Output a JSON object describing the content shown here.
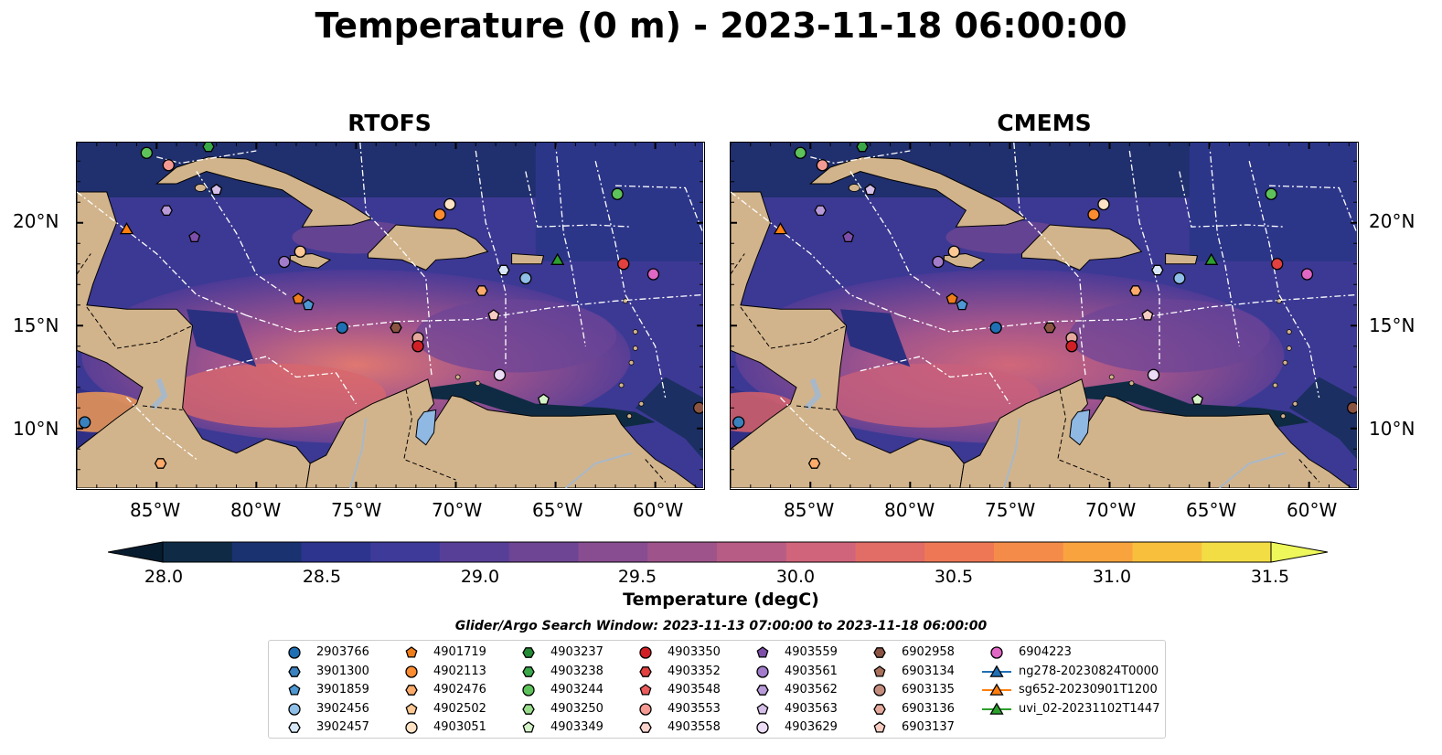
{
  "title": "Temperature (0 m) - 2023-11-18 06:00:00",
  "panels": [
    {
      "id": "left",
      "title": "RTOFS"
    },
    {
      "id": "right",
      "title": "CMEMS"
    }
  ],
  "axes": {
    "lat_labels": [
      "20°N",
      "15°N",
      "10°N"
    ],
    "lon_labels": [
      "85°W",
      "80°W",
      "75°W",
      "70°W",
      "65°W",
      "60°W"
    ]
  },
  "colorbar": {
    "label": "Temperature (degC)",
    "ticks": [
      "28.0",
      "28.5",
      "29.0",
      "29.5",
      "30.0",
      "30.5",
      "31.0",
      "31.5"
    ],
    "range": [
      28.0,
      31.5
    ],
    "colors": [
      "#0e2a45",
      "#1a3270",
      "#2c348e",
      "#3e3a99",
      "#573f98",
      "#6e4594",
      "#884d90",
      "#9e548a",
      "#b75c84",
      "#cf647a",
      "#e26c66",
      "#ee7855",
      "#f58b48",
      "#f9a33f",
      "#f8bf3c",
      "#f3dd45"
    ],
    "extend": "both"
  },
  "search_window": "Glider/Argo Search Window: 2023-11-13 07:00:00 to 2023-11-18 06:00:00",
  "legend": {
    "columns": [
      [
        {
          "label": "2903766",
          "marker": "circle",
          "color": "#1f6fb4"
        },
        {
          "label": "3901300",
          "marker": "hexagon",
          "color": "#3a82be"
        },
        {
          "label": "3901859",
          "marker": "pentagon",
          "color": "#4d98d3"
        },
        {
          "label": "3902456",
          "marker": "circle",
          "color": "#8fbfe6"
        },
        {
          "label": "3902457",
          "marker": "hexagon",
          "color": "#d7e7f7"
        }
      ],
      [
        {
          "label": "4901719",
          "marker": "pentagon",
          "color": "#ef7d1a"
        },
        {
          "label": "4902113",
          "marker": "circle",
          "color": "#fb8c2f"
        },
        {
          "label": "4902476",
          "marker": "hexagon",
          "color": "#fcab6b"
        },
        {
          "label": "4902502",
          "marker": "pentagon",
          "color": "#fdc894"
        },
        {
          "label": "4903051",
          "marker": "circle",
          "color": "#fde2c4"
        }
      ],
      [
        {
          "label": "4903237",
          "marker": "hexagon",
          "color": "#238b35"
        },
        {
          "label": "4903238",
          "marker": "hexagon",
          "color": "#3aa848"
        },
        {
          "label": "4903244",
          "marker": "circle",
          "color": "#5ec25a"
        },
        {
          "label": "4903250",
          "marker": "hexagon",
          "color": "#99dc8c"
        },
        {
          "label": "4903349",
          "marker": "pentagon",
          "color": "#d3f2c7"
        }
      ],
      [
        {
          "label": "4903350",
          "marker": "circle",
          "color": "#d11f26"
        },
        {
          "label": "4903352",
          "marker": "hexagon",
          "color": "#e34040"
        },
        {
          "label": "4903548",
          "marker": "pentagon",
          "color": "#ec5b5b"
        },
        {
          "label": "4903553",
          "marker": "circle",
          "color": "#f59a93"
        },
        {
          "label": "4903558",
          "marker": "hexagon",
          "color": "#fcd2cd"
        }
      ],
      [
        {
          "label": "4903559",
          "marker": "pentagon",
          "color": "#7d4fa8"
        },
        {
          "label": "4903561",
          "marker": "circle",
          "color": "#a27ccb"
        },
        {
          "label": "4903562",
          "marker": "hexagon",
          "color": "#b89ad8"
        },
        {
          "label": "4903563",
          "marker": "pentagon",
          "color": "#d5bfe9"
        },
        {
          "label": "4903629",
          "marker": "circle",
          "color": "#ecdcf6"
        }
      ],
      [
        {
          "label": "6902958",
          "marker": "hexagon",
          "color": "#8b5442"
        },
        {
          "label": "6903134",
          "marker": "pentagon",
          "color": "#a9705c"
        },
        {
          "label": "6903135",
          "marker": "circle",
          "color": "#c48c7d"
        },
        {
          "label": "6903136",
          "marker": "hexagon",
          "color": "#e4a99c"
        },
        {
          "label": "6903137",
          "marker": "pentagon",
          "color": "#f7ccc2"
        }
      ],
      [
        {
          "label": "6904223",
          "marker": "circle",
          "color": "#e067c4"
        },
        {
          "label": "ng278-20230824T0000",
          "marker": "triangle",
          "color": "#1f6fb4",
          "line": true
        },
        {
          "label": "sg652-20230901T1200",
          "marker": "triangle",
          "color": "#ff7f0e",
          "line": true
        },
        {
          "label": "uvi_02-20231102T1447",
          "marker": "triangle",
          "color": "#2ca02c",
          "line": true
        }
      ]
    ]
  },
  "map_colors": {
    "land": "#d2b48c",
    "lake": "#8fb8e2",
    "rivers": "#a8b8c8",
    "shelf": "#0f2b44",
    "warm_pool": "#d96a70",
    "warm_core": "#f2a04a"
  },
  "markers": [
    {
      "type": "circle",
      "color": "#5ec25a",
      "lon": -85.5,
      "lat": 23.4,
      "id": "4903244"
    },
    {
      "type": "circle",
      "color": "#f59a93",
      "lon": -84.4,
      "lat": 22.8,
      "id": "4903553"
    },
    {
      "type": "pentagon",
      "color": "#d5bfe9",
      "lon": -82.0,
      "lat": 21.6,
      "id": "4903563"
    },
    {
      "type": "hexagon",
      "color": "#b89ad8",
      "lon": -84.5,
      "lat": 20.6,
      "id": "4903562"
    },
    {
      "type": "pentagon",
      "color": "#7d4fa8",
      "lon": -83.1,
      "lat": 19.3,
      "id": "4903559"
    },
    {
      "type": "triangle",
      "color": "#ff7f0e",
      "lon": -86.5,
      "lat": 19.7,
      "id": "sg652-20230901T1200"
    },
    {
      "type": "circle",
      "color": "#fdc894",
      "lon": -77.8,
      "lat": 18.6,
      "id": "4902502"
    },
    {
      "type": "circle",
      "color": "#a27ccb",
      "lon": -78.6,
      "lat": 18.1,
      "id": "4903561"
    },
    {
      "type": "pentagon",
      "color": "#ef7d1a",
      "lon": -77.9,
      "lat": 16.3,
      "id": "4901719"
    },
    {
      "type": "pentagon",
      "color": "#4d98d3",
      "lon": -77.4,
      "lat": 16.0,
      "id": "3901859"
    },
    {
      "type": "circle",
      "color": "#1f6fb4",
      "lon": -75.7,
      "lat": 14.9,
      "id": "2903766"
    },
    {
      "type": "hexagon",
      "color": "#8b5442",
      "lon": -73.0,
      "lat": 14.9,
      "id": "6902958"
    },
    {
      "type": "circle",
      "color": "#e4a99c",
      "lon": -71.9,
      "lat": 14.4,
      "id": "6903136"
    },
    {
      "type": "circle",
      "color": "#d11f26",
      "lon": -71.9,
      "lat": 14.0,
      "id": "4903350"
    },
    {
      "type": "circle",
      "color": "#fb8c2f",
      "lon": -70.8,
      "lat": 20.4,
      "id": "4902113"
    },
    {
      "type": "circle",
      "color": "#fde2c4",
      "lon": -70.3,
      "lat": 20.9,
      "id": "4903051"
    },
    {
      "type": "hexagon",
      "color": "#d7e7f7",
      "lon": -67.6,
      "lat": 17.7,
      "id": "3902457"
    },
    {
      "type": "circle",
      "color": "#8fbfe6",
      "lon": -66.5,
      "lat": 17.3,
      "id": "3902456"
    },
    {
      "type": "triangle",
      "color": "#2ca02c",
      "lon": -64.9,
      "lat": 18.2,
      "id": "uvi_02-20231102T1447"
    },
    {
      "type": "hexagon",
      "color": "#fcab6b",
      "lon": -68.7,
      "lat": 16.7,
      "id": "4902476"
    },
    {
      "type": "pentagon",
      "color": "#f7ccc2",
      "lon": -68.1,
      "lat": 15.5,
      "id": "6903137"
    },
    {
      "type": "circle",
      "color": "#ecdcf6",
      "lon": -67.8,
      "lat": 12.6,
      "id": "4903629"
    },
    {
      "type": "pentagon",
      "color": "#d3f2c7",
      "lon": -65.6,
      "lat": 11.4,
      "id": "4903349"
    },
    {
      "type": "circle",
      "color": "#5ec25a",
      "lon": -61.9,
      "lat": 21.4,
      "id": "4903244"
    },
    {
      "type": "circle",
      "color": "#e34040",
      "lon": -61.6,
      "lat": 18.0,
      "id": "4903352"
    },
    {
      "type": "circle",
      "color": "#e067c4",
      "lon": -60.1,
      "lat": 17.5,
      "id": "6904223"
    },
    {
      "type": "circle",
      "color": "#8b5442",
      "lon": -57.8,
      "lat": 11.0,
      "id": "6902958"
    },
    {
      "type": "circle",
      "color": "#3a82be",
      "lon": -88.6,
      "lat": 10.3,
      "id": "3901300"
    },
    {
      "type": "hexagon",
      "color": "#fcab6b",
      "lon": -84.8,
      "lat": 8.3,
      "id": "4902476"
    },
    {
      "type": "hexagon",
      "color": "#3aa848",
      "lon": -82.4,
      "lat": 23.7,
      "id": "4903238"
    }
  ]
}
